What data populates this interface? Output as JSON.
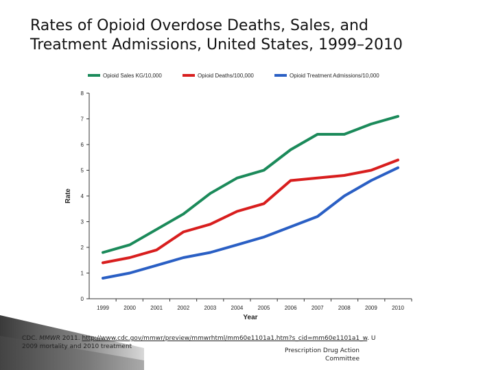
{
  "slide": {
    "title_line1": "Rates of Opioid Overdose Deaths, Sales, and",
    "title_line2": "Treatment Admissions, United States, 1999–2010"
  },
  "footer": {
    "source_prefix": "CDC.",
    "source_journal": "MMWR",
    "source_year": "2011.",
    "source_url": "http://www.cdc.gov/mmwr/preview/mmwrhtml/mm60e1101a1.htm?s_cid=mm60e1101a1_w",
    "source_suffix": ". U",
    "source_line2": "2009 mortality and 2010 treatment",
    "org_line1": "Prescription Drug Action",
    "org_line2": "Committee"
  },
  "colors": {
    "sales": "#1b8a5a",
    "deaths": "#d81e1e",
    "treatment": "#2a5fc4"
  },
  "chart_data": {
    "type": "line",
    "title": "",
    "xlabel": "Year",
    "ylabel": "Rate",
    "ylim": [
      0,
      8
    ],
    "yticks": [
      "0",
      "1",
      "2",
      "3",
      "4",
      "5",
      "6",
      "7",
      "8"
    ],
    "categories": [
      "1999",
      "2000",
      "2001",
      "2002",
      "2003",
      "2004",
      "2005",
      "2006",
      "2007",
      "2008",
      "2009",
      "2010"
    ],
    "grid": false,
    "legend_position": "top",
    "series": [
      {
        "name": "Opioid Sales KG/10,000",
        "color": "#1b8a5a",
        "values": [
          1.8,
          2.1,
          2.7,
          3.3,
          4.1,
          4.7,
          5.0,
          5.8,
          6.4,
          6.4,
          6.8,
          7.1
        ]
      },
      {
        "name": "Opioid Deaths/100,000",
        "color": "#d81e1e",
        "values": [
          1.4,
          1.6,
          1.9,
          2.6,
          2.9,
          3.4,
          3.7,
          4.6,
          4.7,
          4.8,
          5.0,
          5.4
        ]
      },
      {
        "name": "Opioid Treatment Admissions/10,000",
        "color": "#2a5fc4",
        "values": [
          0.8,
          1.0,
          1.3,
          1.6,
          1.8,
          2.1,
          2.4,
          2.8,
          3.2,
          4.0,
          4.6,
          5.1
        ]
      }
    ]
  }
}
